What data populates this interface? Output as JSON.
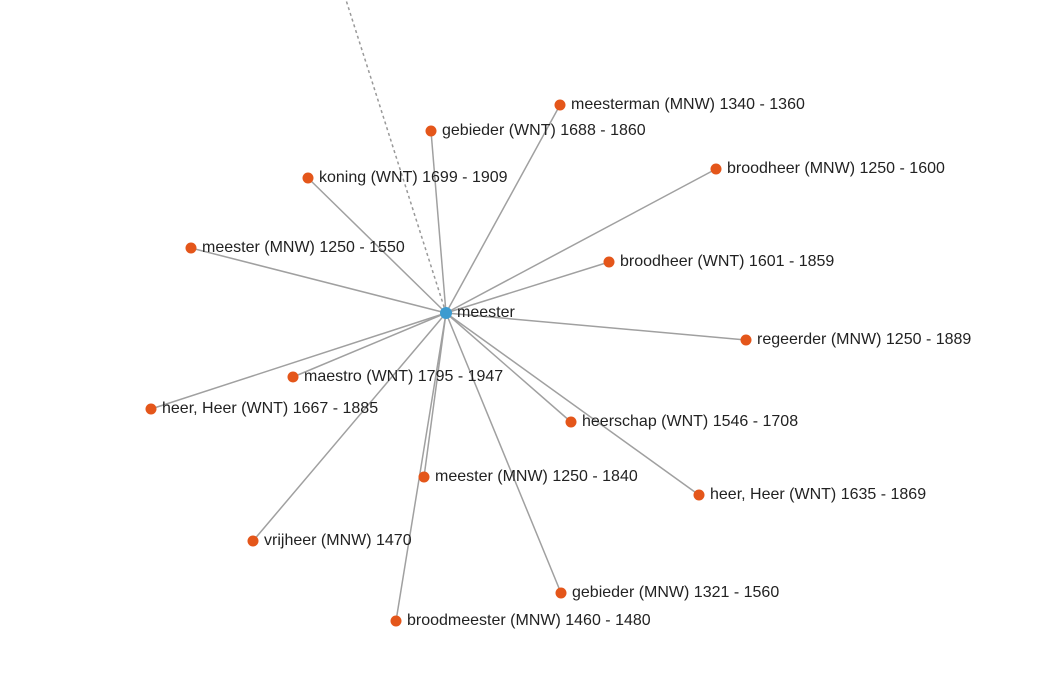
{
  "center": {
    "label": "meester"
  },
  "nodes": [
    {
      "label": "meesterman (MNW) 1340 - 1360"
    },
    {
      "label": "gebieder (WNT) 1688 - 1860"
    },
    {
      "label": "koning (WNT) 1699 - 1909"
    },
    {
      "label": "broodheer (MNW) 1250 - 1600"
    },
    {
      "label": "meester (MNW) 1250 - 1550"
    },
    {
      "label": "broodheer (WNT) 1601 - 1859"
    },
    {
      "label": "regeerder (MNW) 1250 - 1889"
    },
    {
      "label": "maestro (WNT) 1795 - 1947"
    },
    {
      "label": "heer, Heer (WNT) 1667 - 1885"
    },
    {
      "label": "heerschap (WNT) 1546 - 1708"
    },
    {
      "label": "meester (MNW) 1250 - 1840"
    },
    {
      "label": "heer, Heer (WNT) 1635 - 1869"
    },
    {
      "label": "vrijheer (MNW) 1470"
    },
    {
      "label": "gebieder (MNW) 1321 - 1560"
    },
    {
      "label": "broodmeester (MNW) 1460 - 1480"
    }
  ]
}
